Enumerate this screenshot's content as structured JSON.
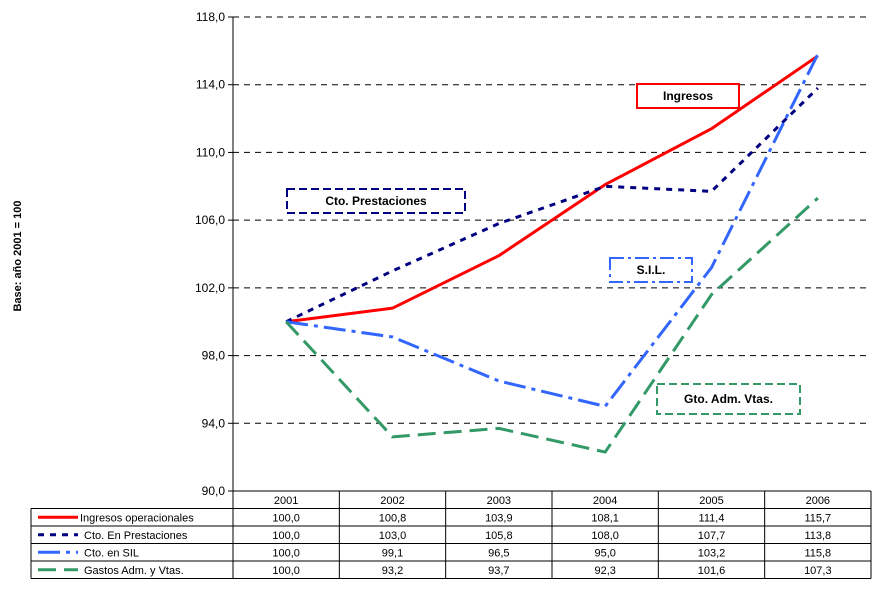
{
  "chart_data": {
    "type": "line",
    "ylabel": "Base: año 2001 = 100",
    "ylim": [
      90,
      118
    ],
    "y_ticks": [
      "90,0",
      "94,0",
      "98,0",
      "102,0",
      "106,0",
      "110,0",
      "114,0",
      "118,0"
    ],
    "grid": "horizontal dashed",
    "categories": [
      "2001",
      "2002",
      "2003",
      "2004",
      "2005",
      "2006"
    ],
    "series": [
      {
        "name": "Ingresos operacionales",
        "color": "#ff0000",
        "style": "solid",
        "values": [
          100.0,
          100.8,
          103.9,
          108.1,
          111.4,
          115.7
        ],
        "display": [
          "100,0",
          "100,8",
          "103,9",
          "108,1",
          "111,4",
          "115,7"
        ]
      },
      {
        "name": "Cto. En Prestaciones",
        "color": "#000080",
        "style": "dotted",
        "values": [
          100.0,
          103.0,
          105.8,
          108.0,
          107.7,
          113.8
        ],
        "display": [
          "100,0",
          "103,0",
          "105,8",
          "108,0",
          "107,7",
          "113,8"
        ]
      },
      {
        "name": "Cto. en SIL",
        "color": "#3366ff",
        "style": "dashdot",
        "values": [
          100.0,
          99.1,
          96.5,
          95.0,
          103.2,
          115.8
        ],
        "display": [
          "100,0",
          "99,1",
          "96,5",
          "95,0",
          "103,2",
          "115,8"
        ]
      },
      {
        "name": "Gastos Adm. y Vtas.",
        "color": "#339966",
        "style": "dash",
        "values": [
          100.0,
          93.2,
          93.7,
          92.3,
          101.6,
          107.3
        ],
        "display": [
          "100,0",
          "93,2",
          "93,7",
          "92,3",
          "101,6",
          "107,3"
        ]
      }
    ],
    "annotations": [
      {
        "text": "Ingresos",
        "series": 0
      },
      {
        "text": "Cto. Prestaciones",
        "series": 1
      },
      {
        "text": "S.I.L.",
        "series": 2
      },
      {
        "text": "Gto. Adm. Vtas.",
        "series": 3
      }
    ]
  }
}
